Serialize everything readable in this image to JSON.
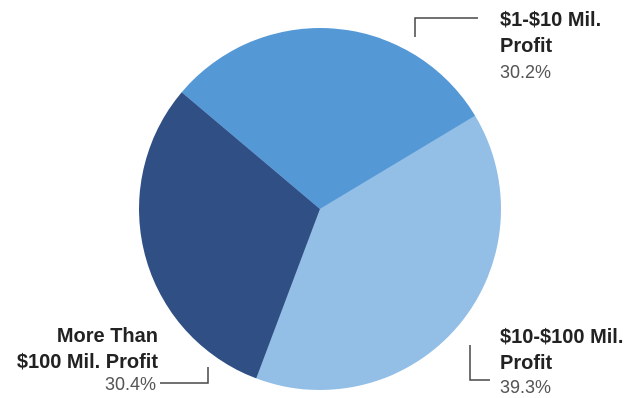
{
  "chart_data": {
    "type": "pie",
    "slices": [
      {
        "name": "$10-$100 Mil. Profit",
        "value": 39.3,
        "value_label": "39.3%",
        "color": "#93bfe6"
      },
      {
        "name": "More Than $100 Mil. Profit",
        "value": 30.4,
        "value_label": "30.4%",
        "color": "#2f4f85"
      },
      {
        "name": "$1-$10 Mil. Profit",
        "value": 30.2,
        "value_label": "30.2%",
        "color": "#5598d6"
      }
    ],
    "labels": {
      "top_right": {
        "line1": "$1-$10 Mil.",
        "line2": "Profit",
        "value": "30.2%"
      },
      "bottom_right": {
        "line1": "$10-$100 Mil.",
        "line2": "Profit",
        "value": "39.3%"
      },
      "bottom_left": {
        "line1": "More Than",
        "line2": "$100 Mil. Profit",
        "value": "30.4%"
      }
    },
    "legend": "none"
  }
}
